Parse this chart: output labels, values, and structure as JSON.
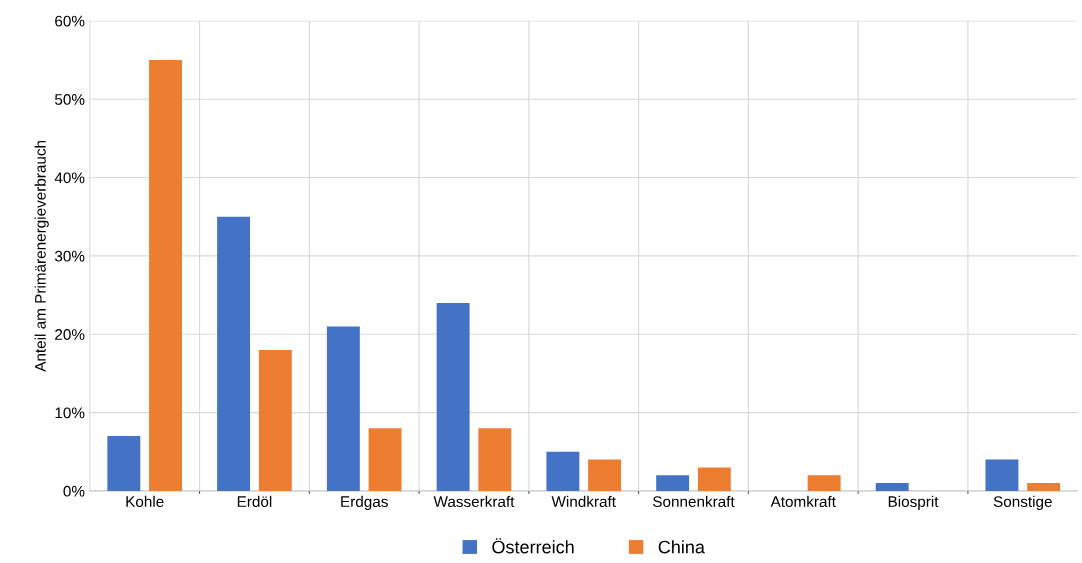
{
  "chart_data": {
    "type": "bar",
    "ylabel": "Anteil am Primärenergieverbrauch",
    "categories": [
      "Kohle",
      "Erdöl",
      "Erdgas",
      "Wasserkraft",
      "Windkraft",
      "Sonnenkraft",
      "Atomkraft",
      "Biosprit",
      "Sonstige"
    ],
    "series": [
      {
        "name": "Österreich",
        "color": "#4472c4",
        "values": [
          7,
          35,
          21,
          24,
          5,
          2,
          0,
          1,
          4
        ]
      },
      {
        "name": "China",
        "color": "#ed7d31",
        "values": [
          55,
          18,
          8,
          8,
          4,
          3,
          2,
          0,
          1
        ]
      }
    ],
    "ylim": [
      0,
      60
    ],
    "yticks": [
      {
        "value": 0,
        "label": "0%"
      },
      {
        "value": 10,
        "label": "10%"
      },
      {
        "value": 20,
        "label": "20%"
      },
      {
        "value": 30,
        "label": "30%"
      },
      {
        "value": 40,
        "label": "40%"
      },
      {
        "value": 50,
        "label": "50%"
      },
      {
        "value": 60,
        "label": "60%"
      }
    ],
    "grid": true,
    "legend": "bottom"
  }
}
